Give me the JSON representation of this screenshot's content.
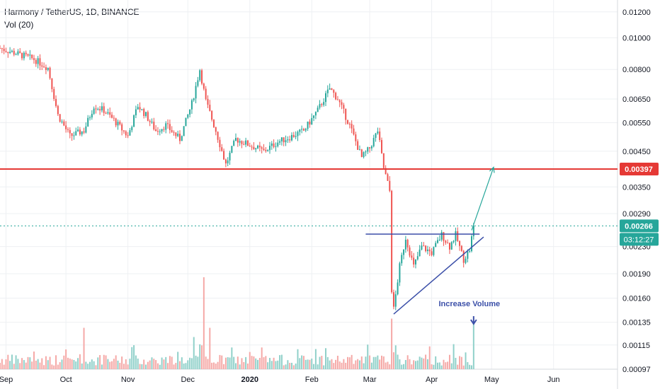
{
  "header": {
    "title": "Harmony / TetherUS, 1D, BINANCE",
    "indicator": "Vol (20)"
  },
  "colors": {
    "up": "#26a69a",
    "down": "#ef5350",
    "up_vol": "#8fd0c9",
    "down_vol": "#f5a8a6",
    "resistance": "#e53935",
    "trendline": "#3b4fa8",
    "arrow": "#26a69a",
    "grid": "#eef0f3",
    "axis_text": "#131722",
    "current_dotted": "#26a69a"
  },
  "chart_data": {
    "type": "candlestick",
    "y_scale": "log",
    "ylim": [
      0.00097,
      0.0126
    ],
    "y_ticks": [
      "0.01200",
      "0.01000",
      "0.00800",
      "0.00650",
      "0.00550",
      "0.00450",
      "0.00350",
      "0.00290",
      "0.00230",
      "0.00190",
      "0.00160",
      "0.00135",
      "0.00115",
      "0.00097"
    ],
    "x_ticks": [
      "Sep",
      "Oct",
      "Nov",
      "Dec",
      "2020",
      "Feb",
      "Mar",
      "Apr",
      "May",
      "Jun"
    ],
    "x_range": [
      "2019-08-29",
      "2020-07-03"
    ],
    "price_levels": [
      {
        "label": "0.00397",
        "value": 0.00397,
        "kind": "horizontal_resistance"
      },
      {
        "label": "0.00266",
        "value": 0.00266,
        "kind": "current_price"
      }
    ],
    "countdown": "03:12:27",
    "annotations": [
      {
        "text": "Increase Volume",
        "date": "2020-04-22"
      }
    ],
    "drawings": {
      "resistance_line": {
        "value": 0.00397
      },
      "triangle_top": {
        "from": "2020-02-28",
        "to": "2020-04-25",
        "value": 0.00251
      },
      "triangle_bottom": {
        "from": "2020-03-13",
        "from_value": 0.00143,
        "to": "2020-04-27",
        "to_value": 0.00246
      },
      "breakout_arrow": {
        "from": "2020-04-21",
        "from_value": 0.00258,
        "to": "2020-05-02",
        "to_value": 0.00402
      }
    },
    "anchors": [
      [
        "2019-08-29",
        0.0093
      ],
      [
        "2019-09-05",
        0.009
      ],
      [
        "2019-09-15",
        0.0086
      ],
      [
        "2019-09-22",
        0.0081
      ],
      [
        "2019-09-27",
        0.0058
      ],
      [
        "2019-10-03",
        0.005
      ],
      [
        "2019-10-10",
        0.0052
      ],
      [
        "2019-10-15",
        0.0062
      ],
      [
        "2019-10-20",
        0.006
      ],
      [
        "2019-10-25",
        0.0056
      ],
      [
        "2019-11-01",
        0.005
      ],
      [
        "2019-11-06",
        0.0062
      ],
      [
        "2019-11-10",
        0.0058
      ],
      [
        "2019-11-15",
        0.0052
      ],
      [
        "2019-11-20",
        0.0054
      ],
      [
        "2019-11-27",
        0.0049
      ],
      [
        "2019-12-03",
        0.0063
      ],
      [
        "2019-12-07",
        0.008
      ],
      [
        "2019-12-10",
        0.0064
      ],
      [
        "2019-12-15",
        0.0052
      ],
      [
        "2019-12-20",
        0.0041
      ],
      [
        "2019-12-25",
        0.0049
      ],
      [
        "2020-01-01",
        0.0047
      ],
      [
        "2020-01-08",
        0.0045
      ],
      [
        "2020-01-15",
        0.0048
      ],
      [
        "2020-01-22",
        0.005
      ],
      [
        "2020-01-28",
        0.0052
      ],
      [
        "2020-02-04",
        0.006
      ],
      [
        "2020-02-10",
        0.007
      ],
      [
        "2020-02-14",
        0.0065
      ],
      [
        "2020-02-20",
        0.0054
      ],
      [
        "2020-02-26",
        0.0043
      ],
      [
        "2020-03-01",
        0.0046
      ],
      [
        "2020-03-05",
        0.0052
      ],
      [
        "2020-03-08",
        0.004
      ],
      [
        "2020-03-11",
        0.0034
      ],
      [
        "2020-03-12",
        0.0017
      ],
      [
        "2020-03-13",
        0.00148
      ],
      [
        "2020-03-16",
        0.002
      ],
      [
        "2020-03-19",
        0.00245
      ],
      [
        "2020-03-23",
        0.002
      ],
      [
        "2020-03-27",
        0.0023
      ],
      [
        "2020-04-01",
        0.0022
      ],
      [
        "2020-04-06",
        0.0025
      ],
      [
        "2020-04-10",
        0.0023
      ],
      [
        "2020-04-13",
        0.0025
      ],
      [
        "2020-04-17",
        0.0021
      ],
      [
        "2020-04-20",
        0.00225
      ],
      [
        "2020-04-22",
        0.00266
      ]
    ],
    "volume_peaks": [
      {
        "date": "2019-12-09",
        "value": 1.0
      },
      {
        "date": "2019-10-10",
        "value": 0.45
      },
      {
        "date": "2020-03-12",
        "value": 0.55
      },
      {
        "date": "2020-04-22",
        "value": 0.4
      },
      {
        "date": "2019-12-04",
        "value": 0.35
      },
      {
        "date": "2019-12-12",
        "value": 0.45
      }
    ]
  }
}
